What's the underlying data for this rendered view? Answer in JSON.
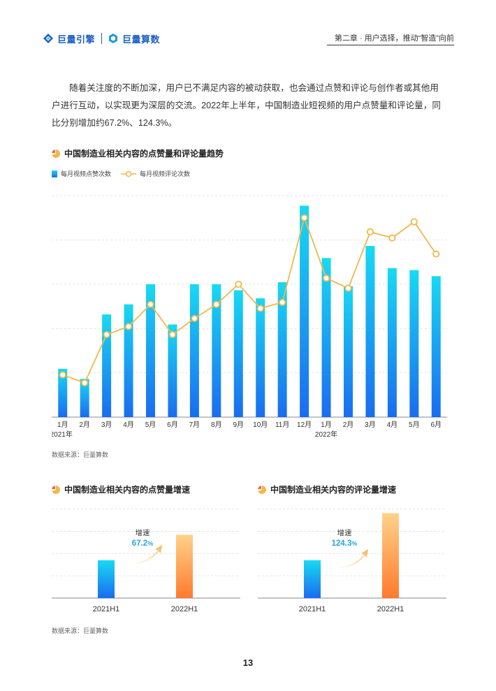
{
  "header": {
    "logo_primary": "巨量引擎",
    "logo_secondary": "巨量算数",
    "chapter": "第二章 · 用户选择，推动“智造”向前"
  },
  "intro": "随着关注度的不断加深，用户已不满足内容的被动获取，也会通过点赞和评论与创作者或其他用户进行互动，以实现更为深层的交流。2022年上半年，中国制造业短视频的用户点赞量和评论量，同比分别增加约67.2%、124.3%。",
  "colors": {
    "bar_top": "#19d9f2",
    "bar_bottom": "#1a6cf0",
    "line": "#f2b84b",
    "orange_top": "#ffd28a",
    "orange_bottom": "#ff7a2e",
    "accent_text": "#2aa4e8"
  },
  "trend_chart": {
    "title": "中国制造业相关内容的点赞量和评论量趋势",
    "legend_bar": "每月视频点赞次数",
    "legend_line": "每月视频评论次数",
    "source": "数据来源：巨量算数",
    "year_labels": [
      "2021年",
      "2022年"
    ]
  },
  "likes_chart": {
    "title": "中国制造业相关内容的点赞量增速",
    "growth_label": "增速",
    "growth_value": "67.2",
    "growth_unit": "%"
  },
  "comments_chart": {
    "title": "中国制造业相关内容的评论量增速",
    "growth_label": "增速",
    "growth_value": "124.3",
    "growth_unit": "%"
  },
  "bottom_source": "数据来源：巨量算数",
  "page_number": "13",
  "chart_data": [
    {
      "type": "bar",
      "title": "中国制造业相关内容的点赞量和评论量趋势",
      "categories": [
        "1月",
        "2月",
        "3月",
        "4月",
        "5月",
        "6月",
        "7月",
        "8月",
        "9月",
        "10月",
        "11月",
        "12月",
        "1月",
        "2月",
        "3月",
        "4月",
        "5月",
        "6月"
      ],
      "series": [
        {
          "name": "每月视频点赞次数",
          "type": "bar",
          "values": [
            24,
            19,
            51,
            56,
            66,
            46,
            66,
            66,
            63,
            59,
            67,
            105,
            79,
            65,
            85,
            74,
            73,
            70
          ]
        },
        {
          "name": "每月视频评论次数",
          "type": "line",
          "values": [
            21,
            17,
            41,
            45,
            56,
            41,
            49,
            56,
            66,
            54,
            57,
            99,
            69,
            64,
            92,
            89,
            97,
            81
          ]
        }
      ],
      "ylim": [
        0,
        110
      ],
      "grid": true,
      "legend": "top-left"
    },
    {
      "type": "bar",
      "title": "中国制造业相关内容的点赞量增速",
      "categories": [
        "2021H1",
        "2022H1"
      ],
      "values": [
        100,
        167.2
      ],
      "ylim": [
        0,
        240
      ],
      "grid": true
    },
    {
      "type": "bar",
      "title": "中国制造业相关内容的评论量增速",
      "categories": [
        "2021H1",
        "2022H1"
      ],
      "values": [
        100,
        224.3
      ],
      "ylim": [
        0,
        240
      ],
      "grid": true
    }
  ]
}
